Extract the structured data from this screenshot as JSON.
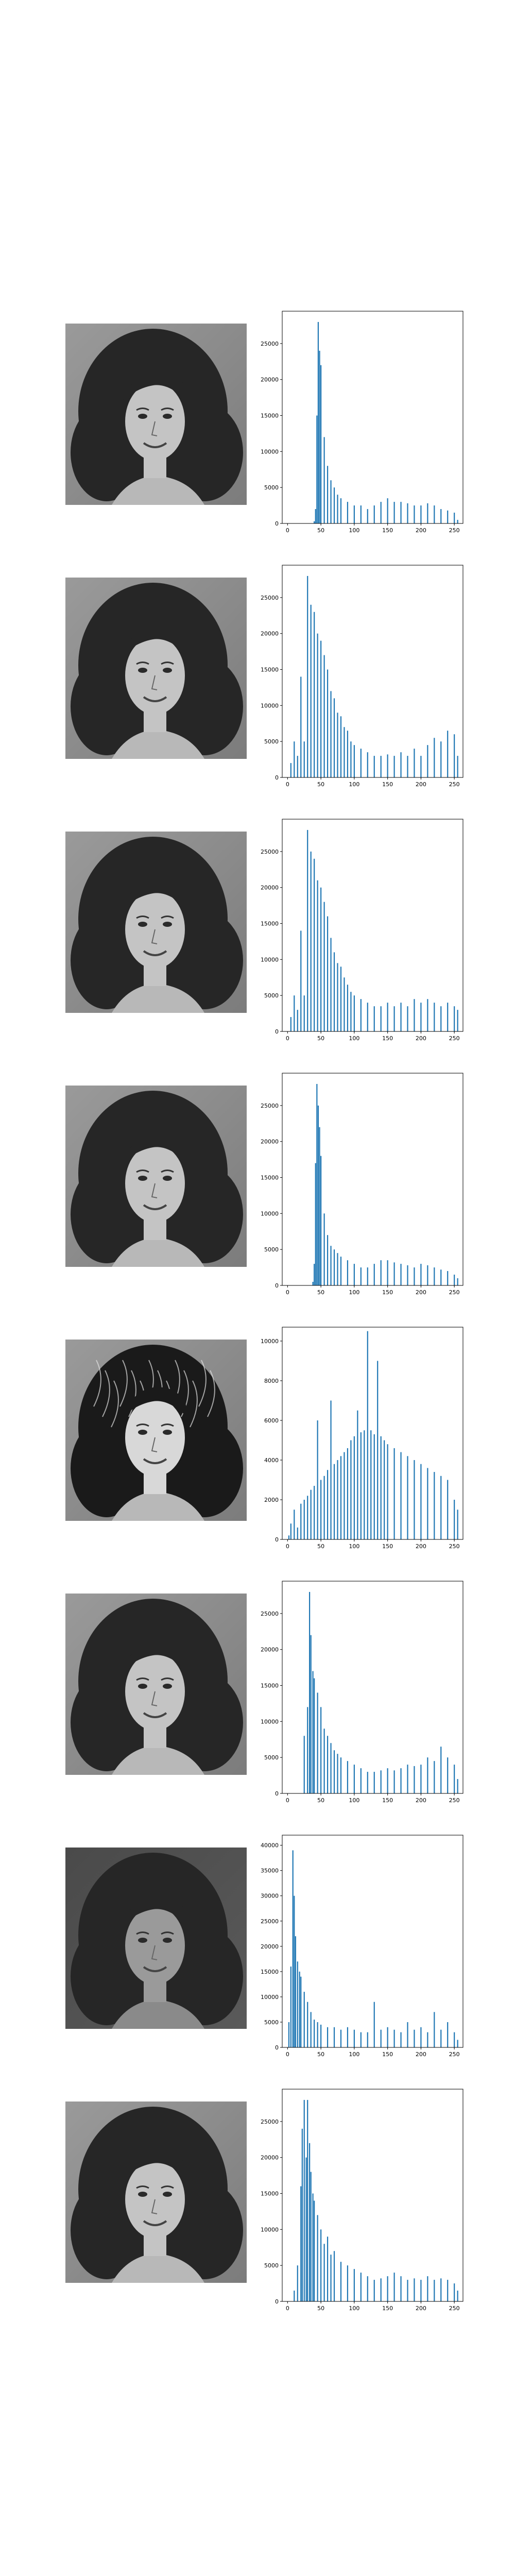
{
  "panels": [
    {
      "photo": {
        "name": "grayscale portrait photo",
        "variant": "original"
      },
      "chart_data": {
        "type": "bar",
        "title": "",
        "xlabel": "",
        "ylabel": "",
        "xlim": [
          -8,
          263
        ],
        "ylim": [
          0,
          29500
        ],
        "xticks": [
          0,
          50,
          100,
          150,
          200,
          250
        ],
        "yticks": [
          0,
          5000,
          10000,
          15000,
          20000,
          25000
        ],
        "color": "#1f77b4",
        "grid": false,
        "series": [
          {
            "x": [
              40,
              42,
              44,
              46,
              48,
              50,
              55,
              60,
              65,
              70,
              75,
              80,
              90,
              100,
              110,
              120,
              130,
              140,
              150,
              160,
              170,
              180,
              190,
              200,
              210,
              220,
              230,
              240,
              250,
              255
            ],
            "values": [
              300,
              2000,
              15000,
              28000,
              24000,
              22000,
              12000,
              8000,
              6000,
              5000,
              4000,
              3500,
              3000,
              2500,
              2500,
              2000,
              2500,
              3000,
              3500,
              3000,
              3000,
              2800,
              2500,
              2500,
              2800,
              2500,
              2000,
              1800,
              1500,
              500
            ]
          }
        ]
      }
    },
    {
      "photo": {
        "name": "grayscale portrait photo",
        "variant": "original"
      },
      "chart_data": {
        "type": "bar",
        "title": "",
        "xlabel": "",
        "ylabel": "",
        "xlim": [
          -8,
          263
        ],
        "ylim": [
          0,
          29500
        ],
        "xticks": [
          0,
          50,
          100,
          150,
          200,
          250
        ],
        "yticks": [
          0,
          5000,
          10000,
          15000,
          20000,
          25000
        ],
        "color": "#1f77b4",
        "grid": false,
        "series": [
          {
            "x": [
              5,
              10,
              15,
              20,
              25,
              30,
              35,
              40,
              45,
              50,
              55,
              60,
              65,
              70,
              75,
              80,
              85,
              90,
              95,
              100,
              110,
              120,
              130,
              140,
              150,
              160,
              170,
              180,
              190,
              200,
              210,
              220,
              230,
              240,
              250,
              255
            ],
            "values": [
              2000,
              5000,
              3000,
              14000,
              5000,
              28000,
              24000,
              23000,
              20000,
              19000,
              17000,
              15000,
              12000,
              11000,
              9000,
              8500,
              7000,
              6500,
              5000,
              4500,
              4000,
              3500,
              3000,
              3000,
              3200,
              3000,
              3500,
              3000,
              4000,
              3000,
              4500,
              5500,
              5000,
              6500,
              6000,
              3000
            ]
          }
        ]
      }
    },
    {
      "photo": {
        "name": "grayscale portrait photo",
        "variant": "original"
      },
      "chart_data": {
        "type": "bar",
        "title": "",
        "xlabel": "",
        "ylabel": "",
        "xlim": [
          -8,
          263
        ],
        "ylim": [
          0,
          29500
        ],
        "xticks": [
          0,
          50,
          100,
          150,
          200,
          250
        ],
        "yticks": [
          0,
          5000,
          10000,
          15000,
          20000,
          25000
        ],
        "color": "#1f77b4",
        "grid": false,
        "series": [
          {
            "x": [
              5,
              10,
              15,
              20,
              25,
              30,
              35,
              40,
              45,
              50,
              55,
              60,
              65,
              70,
              75,
              80,
              85,
              90,
              95,
              100,
              110,
              120,
              130,
              140,
              150,
              160,
              170,
              180,
              190,
              200,
              210,
              220,
              230,
              240,
              250,
              255
            ],
            "values": [
              2000,
              5000,
              3000,
              14000,
              5000,
              28000,
              25000,
              24000,
              21000,
              20000,
              18000,
              16000,
              13000,
              11000,
              9500,
              9000,
              7500,
              6500,
              5500,
              5000,
              4500,
              4000,
              3500,
              3500,
              4000,
              3500,
              4000,
              3500,
              4500,
              4000,
              4500,
              4000,
              3500,
              4000,
              3500,
              3000
            ]
          }
        ]
      }
    },
    {
      "photo": {
        "name": "grayscale portrait photo",
        "variant": "original"
      },
      "chart_data": {
        "type": "bar",
        "title": "",
        "xlabel": "",
        "ylabel": "",
        "xlim": [
          -8,
          263
        ],
        "ylim": [
          0,
          29500
        ],
        "xticks": [
          0,
          50,
          100,
          150,
          200,
          250
        ],
        "yticks": [
          0,
          5000,
          10000,
          15000,
          20000,
          25000
        ],
        "color": "#1f77b4",
        "grid": false,
        "series": [
          {
            "x": [
              38,
              40,
              42,
              44,
              46,
              48,
              50,
              55,
              60,
              65,
              70,
              75,
              80,
              90,
              100,
              110,
              120,
              130,
              140,
              150,
              160,
              170,
              180,
              190,
              200,
              210,
              220,
              230,
              240,
              250,
              255
            ],
            "values": [
              500,
              3000,
              17000,
              28000,
              25000,
              22000,
              18000,
              10000,
              7000,
              5500,
              5000,
              4500,
              4000,
              3500,
              3000,
              2500,
              2500,
              3000,
              3500,
              3500,
              3200,
              3000,
              2800,
              2500,
              3000,
              2800,
              2500,
              2200,
              2000,
              1500,
              1000
            ]
          }
        ]
      }
    },
    {
      "photo": {
        "name": "grayscale portrait photo",
        "variant": "high-contrast"
      },
      "chart_data": {
        "type": "bar",
        "title": "",
        "xlabel": "",
        "ylabel": "",
        "xlim": [
          -8,
          263
        ],
        "ylim": [
          0,
          10700
        ],
        "xticks": [
          0,
          50,
          100,
          150,
          200,
          250
        ],
        "yticks": [
          0,
          2000,
          4000,
          6000,
          8000,
          10000
        ],
        "color": "#1f77b4",
        "grid": false,
        "series": [
          {
            "x": [
              2,
              5,
              10,
              15,
              20,
              25,
              30,
              35,
              40,
              45,
              50,
              55,
              60,
              65,
              70,
              75,
              80,
              85,
              90,
              95,
              100,
              105,
              110,
              115,
              120,
              125,
              130,
              135,
              140,
              145,
              150,
              160,
              170,
              180,
              190,
              200,
              210,
              220,
              230,
              240,
              250,
              255
            ],
            "values": [
              200,
              800,
              1500,
              600,
              1800,
              2000,
              2200,
              2500,
              2700,
              6000,
              3000,
              3200,
              3500,
              7000,
              3800,
              4000,
              4200,
              4400,
              4600,
              5000,
              5200,
              6500,
              5400,
              5500,
              10500,
              5500,
              5300,
              9000,
              5200,
              5000,
              4800,
              4600,
              4400,
              4200,
              4000,
              3800,
              3600,
              3400,
              3200,
              3000,
              2000,
              1500
            ]
          }
        ]
      }
    },
    {
      "photo": {
        "name": "grayscale portrait photo",
        "variant": "original"
      },
      "chart_data": {
        "type": "bar",
        "title": "",
        "xlabel": "",
        "ylabel": "",
        "xlim": [
          -8,
          263
        ],
        "ylim": [
          0,
          29500
        ],
        "xticks": [
          0,
          50,
          100,
          150,
          200,
          250
        ],
        "yticks": [
          0,
          5000,
          10000,
          15000,
          20000,
          25000
        ],
        "color": "#1f77b4",
        "grid": false,
        "series": [
          {
            "x": [
              25,
              30,
              33,
              35,
              38,
              40,
              45,
              50,
              55,
              60,
              65,
              70,
              75,
              80,
              90,
              100,
              110,
              120,
              130,
              140,
              150,
              160,
              170,
              180,
              190,
              200,
              210,
              220,
              230,
              240,
              250,
              255
            ],
            "values": [
              8000,
              12000,
              28000,
              22000,
              17000,
              16000,
              14000,
              12000,
              9000,
              8000,
              7000,
              6000,
              5500,
              5000,
              4500,
              4000,
              3500,
              3000,
              3000,
              3200,
              3500,
              3200,
              3500,
              4000,
              3800,
              4000,
              5000,
              4500,
              6500,
              5000,
              4000,
              2000
            ]
          }
        ]
      }
    },
    {
      "photo": {
        "name": "grayscale portrait photo",
        "variant": "darkened"
      },
      "chart_data": {
        "type": "bar",
        "title": "",
        "xlabel": "",
        "ylabel": "",
        "xlim": [
          -8,
          263
        ],
        "ylim": [
          0,
          42000
        ],
        "xticks": [
          0,
          50,
          100,
          150,
          200,
          250
        ],
        "yticks": [
          0,
          5000,
          10000,
          15000,
          20000,
          25000,
          30000,
          35000,
          40000
        ],
        "color": "#1f77b4",
        "grid": false,
        "series": [
          {
            "x": [
              2,
              5,
              8,
              10,
              12,
              15,
              18,
              20,
              25,
              30,
              35,
              40,
              45,
              50,
              60,
              70,
              80,
              90,
              100,
              110,
              120,
              130,
              140,
              150,
              160,
              170,
              180,
              190,
              200,
              210,
              220,
              230,
              240,
              250,
              255
            ],
            "values": [
              5000,
              16000,
              39000,
              30000,
              22000,
              17000,
              15000,
              14000,
              11000,
              9000,
              7000,
              5500,
              5000,
              4500,
              4000,
              4000,
              3500,
              4000,
              3500,
              3000,
              3000,
              9000,
              3500,
              4000,
              3500,
              3000,
              5000,
              3500,
              4000,
              3000,
              7000,
              3500,
              5000,
              3000,
              1500
            ]
          }
        ]
      }
    },
    {
      "photo": {
        "name": "grayscale portrait photo",
        "variant": "original"
      },
      "chart_data": {
        "type": "bar",
        "title": "",
        "xlabel": "",
        "ylabel": "",
        "xlim": [
          -8,
          263
        ],
        "ylim": [
          0,
          29500
        ],
        "xticks": [
          0,
          50,
          100,
          150,
          200,
          250
        ],
        "yticks": [
          0,
          5000,
          10000,
          15000,
          20000,
          25000
        ],
        "color": "#1f77b4",
        "grid": false,
        "series": [
          {
            "x": [
              10,
              15,
              20,
              22,
              25,
              28,
              30,
              33,
              35,
              38,
              40,
              45,
              50,
              55,
              60,
              65,
              70,
              80,
              90,
              100,
              110,
              120,
              130,
              140,
              150,
              160,
              170,
              180,
              190,
              200,
              210,
              220,
              230,
              240,
              250,
              255
            ],
            "values": [
              1500,
              5000,
              16000,
              24000,
              28000,
              20000,
              28000,
              22000,
              18000,
              15000,
              14000,
              12000,
              10000,
              8000,
              9000,
              6500,
              7000,
              5500,
              5000,
              4500,
              4000,
              3500,
              3000,
              3200,
              3500,
              4000,
              3500,
              3000,
              3200,
              3000,
              3500,
              3000,
              3200,
              3000,
              2500,
              1500
            ]
          }
        ]
      }
    }
  ]
}
